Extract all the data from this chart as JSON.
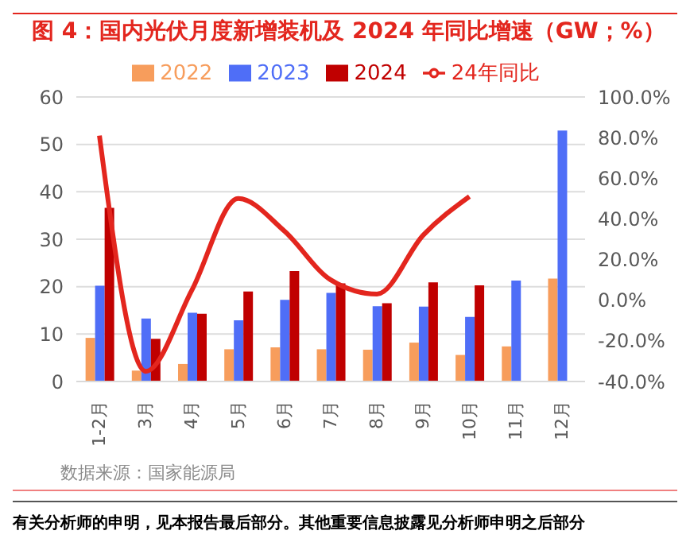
{
  "chart_data": {
    "type": "bar",
    "title": "图 4：国内光伏月度新增装机及 2024 年同比增速（GW；%）",
    "categories": [
      "1-2月",
      "3月",
      "4月",
      "5月",
      "6月",
      "7月",
      "8月",
      "9月",
      "10月",
      "11月",
      "12月"
    ],
    "series": [
      {
        "name": "2022",
        "color": "#f79d5c",
        "values": [
          9.2,
          2.3,
          3.7,
          6.8,
          7.2,
          6.8,
          6.7,
          8.2,
          5.6,
          7.4,
          21.7
        ]
      },
      {
        "name": "2023",
        "color": "#4f6ef7",
        "values": [
          20.2,
          13.3,
          14.5,
          12.9,
          17.2,
          18.7,
          15.9,
          15.8,
          13.6,
          21.3,
          52.9
        ]
      },
      {
        "name": "2024",
        "color": "#c00000",
        "values": [
          36.6,
          9.0,
          14.3,
          19.0,
          23.3,
          20.7,
          16.5,
          20.9,
          20.3,
          null,
          null
        ]
      },
      {
        "name": "24年同比",
        "type": "line",
        "axis": "y2",
        "color": "#e3261e",
        "values": [
          81,
          -35,
          5,
          50,
          34,
          10,
          3,
          32,
          51,
          null,
          null
        ]
      }
    ],
    "ylim": [
      0,
      60
    ],
    "yticks": [
      0,
      10,
      20,
      30,
      40,
      50,
      60
    ],
    "y2lim": [
      -40,
      100
    ],
    "y2ticks": [
      {
        "value": -40,
        "label": "-40.0%"
      },
      {
        "value": -20,
        "label": "-20.0%"
      },
      {
        "value": 0,
        "label": "0.0%"
      },
      {
        "value": 20,
        "label": "20.0%"
      },
      {
        "value": 40,
        "label": "40.0%"
      },
      {
        "value": 60,
        "label": "60.0%"
      },
      {
        "value": 80,
        "label": "80.0%"
      },
      {
        "value": 100,
        "label": "100.0%"
      }
    ],
    "grid": "y",
    "legend": "top",
    "marker": "none",
    "annotations": [
      "数据来源：国家能源局",
      "有关分析师的申明，见本报告最后部分。其他重要信息披露见分析师申明之后部分"
    ]
  }
}
